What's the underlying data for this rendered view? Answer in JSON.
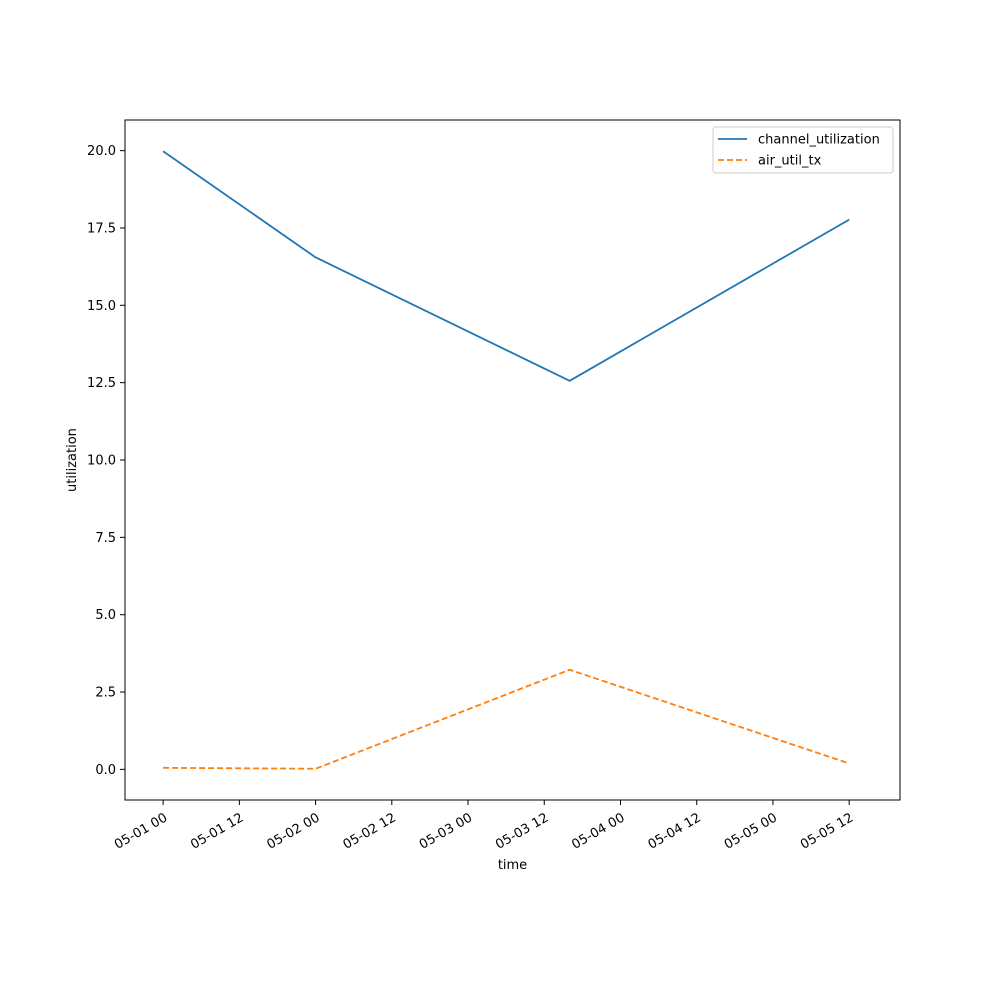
{
  "chart_data": {
    "type": "line",
    "title": "",
    "xlabel": "time",
    "ylabel": "utilization",
    "x_axis_type": "datetime",
    "x": [
      "2024-05-01T00:00",
      "2024-05-02T00:00",
      "2024-05-03T16:00",
      "2024-05-05T12:00"
    ],
    "xlim": [
      "2024-04-30T18:00",
      "2024-05-05T20:00"
    ],
    "ylim": [
      -0.99,
      20.99
    ],
    "x_ticks": [
      "05-01 00",
      "05-01 12",
      "05-02 00",
      "05-02 12",
      "05-03 00",
      "05-03 12",
      "05-04 00",
      "05-04 12",
      "05-05 00",
      "05-05 12"
    ],
    "x_tick_values": [
      "2024-05-01T00:00",
      "2024-05-01T12:00",
      "2024-05-02T00:00",
      "2024-05-02T12:00",
      "2024-05-03T00:00",
      "2024-05-03T12:00",
      "2024-05-04T00:00",
      "2024-05-04T12:00",
      "2024-05-05T00:00",
      "2024-05-05T12:00"
    ],
    "y_ticks": [
      0.0,
      2.5,
      5.0,
      7.5,
      10.0,
      12.5,
      15.0,
      17.5,
      20.0
    ],
    "y_tick_labels": [
      "0.0",
      "2.5",
      "5.0",
      "7.5",
      "10.0",
      "12.5",
      "15.0",
      "17.5",
      "20.0"
    ],
    "grid": false,
    "legend_position": "top-right",
    "series": [
      {
        "name": "channel_utilization",
        "values": [
          19.98,
          16.55,
          12.56,
          17.77
        ],
        "color": "#1f77b4",
        "style": "solid"
      },
      {
        "name": "air_util_tx",
        "values": [
          0.05,
          0.02,
          3.22,
          0.19
        ],
        "color": "#ff7f0e",
        "style": "dashed"
      }
    ]
  }
}
